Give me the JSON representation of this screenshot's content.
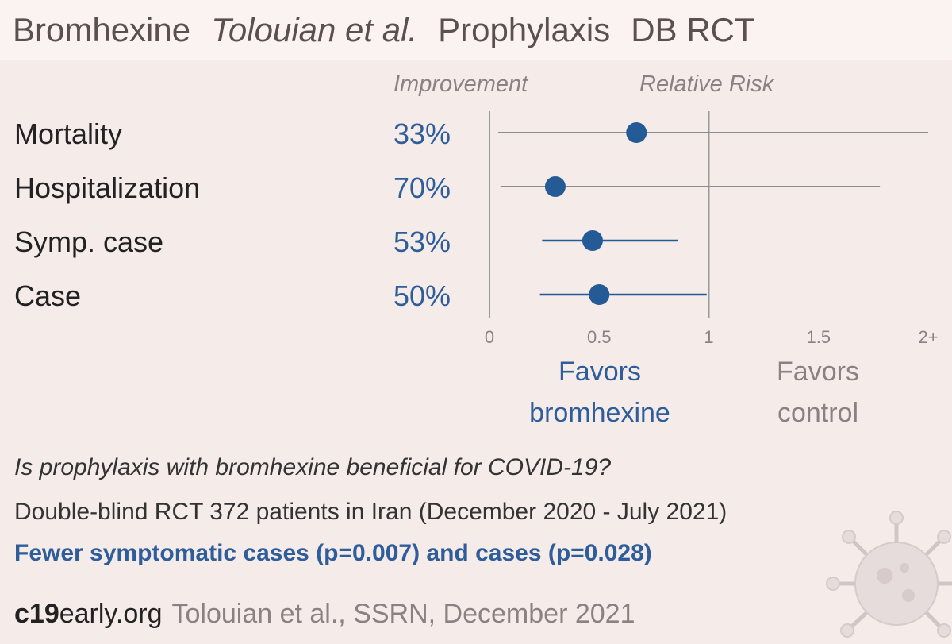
{
  "title": {
    "treatment": "Bromhexine",
    "authors": "Tolouian et al.",
    "setting": "Prophylaxis",
    "design": "DB RCT"
  },
  "headers": {
    "improvement": "Improvement",
    "relative_risk": "Relative Risk"
  },
  "chart_data": {
    "type": "forest",
    "xlim": [
      0,
      2
    ],
    "x_ticks": [
      0,
      0.5,
      1,
      1.5,
      2
    ],
    "x_tick_labels": [
      "0",
      "0.5",
      "1",
      "1.5",
      "2+"
    ],
    "reference_line": 1,
    "rows": [
      {
        "label": "Mortality",
        "improvement": "33%",
        "rr": 0.67,
        "ci_low": 0.04,
        "ci_high": 2.0
      },
      {
        "label": "Hospitalization",
        "improvement": "70%",
        "rr": 0.3,
        "ci_low": 0.05,
        "ci_high": 1.78
      },
      {
        "label": "Symp. case",
        "improvement": "53%",
        "rr": 0.47,
        "ci_low": 0.24,
        "ci_high": 0.86
      },
      {
        "label": "Case",
        "improvement": "50%",
        "rr": 0.5,
        "ci_low": 0.23,
        "ci_high": 0.99
      }
    ],
    "favors_left": "Favors bromhexine",
    "favors_right": "Favors control",
    "colors": {
      "point": "#245a96",
      "ci": "#245a96",
      "ci_grey": "#8c8c8c",
      "axis": "#9a9a9a"
    }
  },
  "favors": {
    "left_line1": "Favors",
    "left_line2": "bromhexine",
    "right_line1": "Favors",
    "right_line2": "control"
  },
  "summary": {
    "question": "Is prophylaxis with bromhexine beneficial for COVID-19?",
    "design": "Double-blind RCT 372 patients in Iran (December 2020 - July 2021)",
    "result": "Fewer symptomatic cases (p=0.007) and cases (p=0.028)"
  },
  "footer": {
    "site_bold": "c19",
    "site_rest": "early.org",
    "citation": "Tolouian et al., SSRN, December 2021"
  }
}
